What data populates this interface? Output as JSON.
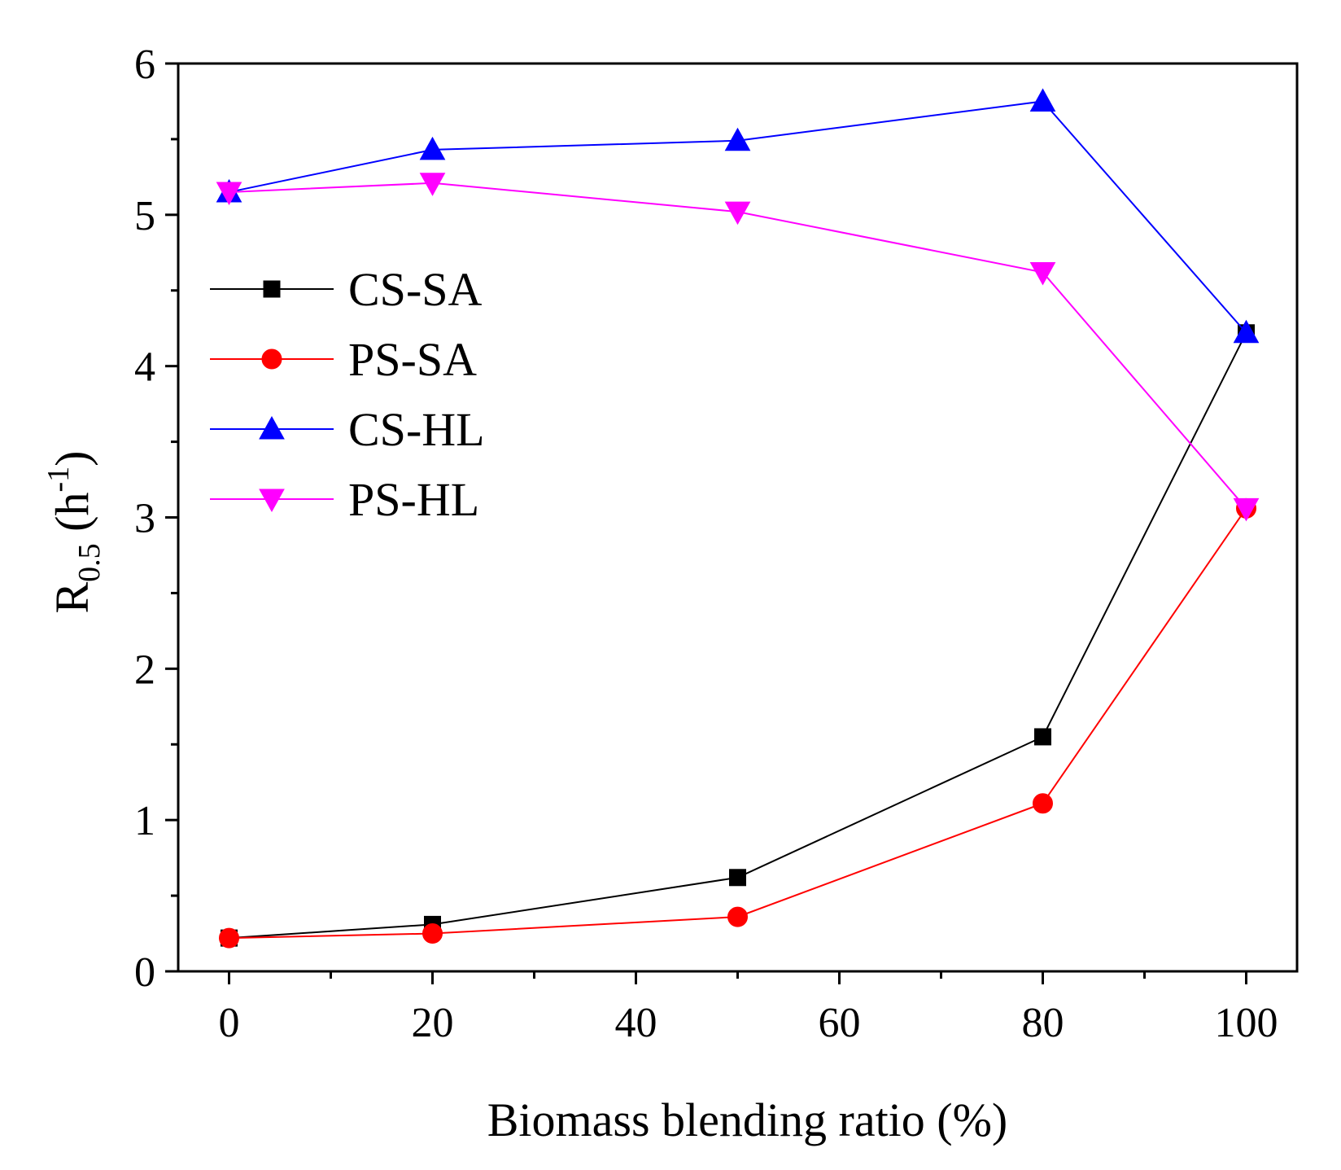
{
  "chart_data": {
    "type": "line",
    "title": "",
    "xlabel": "Biomass blending ratio (%)",
    "ylabel": {
      "base": "R",
      "subscript": "0.5",
      "unit_open": " (h",
      "unit_superscript": "-1",
      "unit_close": ")"
    },
    "xlim": [
      -5,
      105
    ],
    "ylim": [
      0,
      6
    ],
    "x_ticks": [
      0,
      20,
      40,
      60,
      80,
      100
    ],
    "x_tick_labels": [
      "0",
      "20",
      "40",
      "60",
      "80",
      "100"
    ],
    "y_ticks": [
      0,
      1,
      2,
      3,
      4,
      5,
      6
    ],
    "y_tick_labels": [
      "0",
      "1",
      "2",
      "3",
      "4",
      "5",
      "6"
    ],
    "grid": false,
    "legend_position": "left, upper-middle",
    "x": [
      0,
      20,
      50,
      80,
      100
    ],
    "series": [
      {
        "name": "CS-SA",
        "color": "#000000",
        "marker": "square",
        "values": [
          0.22,
          0.31,
          0.62,
          1.55,
          4.22
        ]
      },
      {
        "name": "PS-SA",
        "color": "#ff0000",
        "marker": "circle",
        "values": [
          0.22,
          0.25,
          0.36,
          1.11,
          3.06
        ]
      },
      {
        "name": "CS-HL",
        "color": "#0000ff",
        "marker": "triangle-up",
        "values": [
          5.15,
          5.43,
          5.49,
          5.75,
          4.22
        ]
      },
      {
        "name": "PS-HL",
        "color": "#ff00ff",
        "marker": "triangle-down",
        "values": [
          5.15,
          5.21,
          5.02,
          4.62,
          3.06
        ]
      }
    ]
  }
}
